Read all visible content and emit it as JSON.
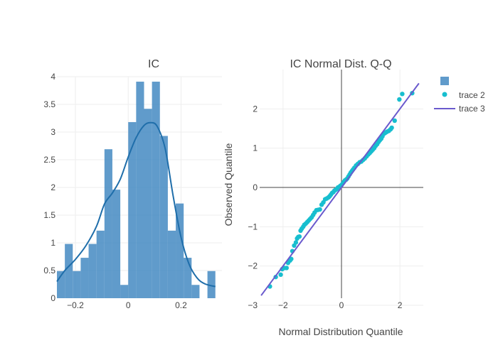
{
  "chart_data": [
    {
      "type": "bar",
      "subtype": "histogram-with-kde",
      "title": "IC",
      "xlabel": "",
      "ylabel": "",
      "xlim": [
        -0.27,
        0.355
      ],
      "ylim": [
        0,
        4
      ],
      "x_ticks": [
        -0.2,
        0,
        0.2
      ],
      "x_tick_labels": [
        "−0.2",
        "0",
        "0.2"
      ],
      "y_ticks": [
        0,
        0.5,
        1,
        1.5,
        2,
        2.5,
        3,
        3.5,
        4
      ],
      "y_tick_labels": [
        "0",
        "0.5",
        "1",
        "1.5",
        "2",
        "2.5",
        "3",
        "3.5",
        "4"
      ],
      "bar_color": "#3d85c0",
      "kde_color": "#1f6eaa",
      "bins": [
        {
          "x0": -0.27,
          "x1": -0.24,
          "value": 0.49
        },
        {
          "x0": -0.24,
          "x1": -0.21,
          "value": 0.98
        },
        {
          "x0": -0.21,
          "x1": -0.18,
          "value": 0.49
        },
        {
          "x0": -0.18,
          "x1": -0.15,
          "value": 0.73
        },
        {
          "x0": -0.15,
          "x1": -0.12,
          "value": 0.98
        },
        {
          "x0": -0.12,
          "x1": -0.09,
          "value": 1.22
        },
        {
          "x0": -0.09,
          "x1": -0.06,
          "value": 2.69
        },
        {
          "x0": -0.06,
          "x1": -0.03,
          "value": 1.96
        },
        {
          "x0": -0.03,
          "x1": 0.0,
          "value": 0.24
        },
        {
          "x0": 0.0,
          "x1": 0.03,
          "value": 3.18
        },
        {
          "x0": 0.03,
          "x1": 0.06,
          "value": 3.91
        },
        {
          "x0": 0.06,
          "x1": 0.09,
          "value": 3.42
        },
        {
          "x0": 0.09,
          "x1": 0.12,
          "value": 3.91
        },
        {
          "x0": 0.12,
          "x1": 0.15,
          "value": 2.93
        },
        {
          "x0": 0.15,
          "x1": 0.18,
          "value": 1.22
        },
        {
          "x0": 0.18,
          "x1": 0.21,
          "value": 1.71
        },
        {
          "x0": 0.21,
          "x1": 0.24,
          "value": 0.73
        },
        {
          "x0": 0.24,
          "x1": 0.27,
          "value": 0.24
        },
        {
          "x0": 0.27,
          "x1": 0.3,
          "value": 0
        },
        {
          "x0": 0.3,
          "x1": 0.33,
          "value": 0.49
        }
      ],
      "kde": {
        "x": [
          -0.27,
          -0.24,
          -0.2,
          -0.16,
          -0.12,
          -0.09,
          -0.06,
          -0.03,
          0.0,
          0.03,
          0.06,
          0.085,
          0.11,
          0.14,
          0.17,
          0.2,
          0.23,
          0.26,
          0.29,
          0.33
        ],
        "y": [
          0.3,
          0.5,
          0.7,
          0.95,
          1.3,
          1.7,
          1.9,
          2.15,
          2.55,
          2.9,
          3.12,
          3.17,
          3.1,
          2.7,
          1.85,
          1.1,
          0.62,
          0.37,
          0.26,
          0.21
        ]
      }
    },
    {
      "type": "scatter",
      "title": "IC Normal Dist. Q-Q",
      "xlabel": "Normal Distribution Quantile",
      "ylabel": "Observed Quantile",
      "xlim": [
        -2.8,
        2.8
      ],
      "ylim": [
        -3,
        3
      ],
      "x_ticks": [
        -2,
        0,
        2
      ],
      "x_tick_labels": [
        "−2",
        "0",
        "2"
      ],
      "y_ticks": [
        -3,
        -2,
        -1,
        0,
        1,
        2
      ],
      "y_tick_labels": [
        "−3",
        "−2",
        "−1",
        "0",
        "1",
        "2"
      ],
      "legend_position": "top-right",
      "legend": [
        {
          "name": "",
          "kind": "bar",
          "color": "#3d85c0"
        },
        {
          "name": "trace 2",
          "kind": "marker",
          "color": "#17becf"
        },
        {
          "name": "trace 3",
          "kind": "line",
          "color": "#6a5acd"
        }
      ],
      "series": [
        {
          "name": "trace 2",
          "kind": "scatter",
          "color": "#17becf",
          "x": [
            -2.45,
            -2.25,
            -2.08,
            -2.03,
            -1.96,
            -1.88,
            -1.83,
            -1.76,
            -1.72,
            -1.68,
            -1.62,
            -1.56,
            -1.52,
            -1.48,
            -1.44,
            -1.4,
            -1.36,
            -1.31,
            -1.27,
            -1.22,
            -1.17,
            -1.12,
            -1.07,
            -1.02,
            -0.97,
            -0.92,
            -0.86,
            -0.8,
            -0.74,
            -0.68,
            -0.62,
            -0.56,
            -0.5,
            -0.44,
            -0.4,
            -0.36,
            -0.32,
            -0.28,
            -0.24,
            -0.2,
            -0.16,
            -0.12,
            -0.08,
            -0.04,
            0.0,
            0.04,
            0.08,
            0.12,
            0.16,
            0.2,
            0.24,
            0.28,
            0.32,
            0.36,
            0.4,
            0.44,
            0.5,
            0.56,
            0.62,
            0.68,
            0.74,
            0.8,
            0.86,
            0.92,
            0.97,
            1.02,
            1.07,
            1.12,
            1.17,
            1.22,
            1.27,
            1.31,
            1.36,
            1.4,
            1.44,
            1.48,
            1.52,
            1.56,
            1.62,
            1.68,
            1.72,
            1.82,
            1.98,
            2.08,
            2.42
          ],
          "y": [
            -2.52,
            -2.28,
            -2.22,
            -2.08,
            -2.05,
            -2.05,
            -1.92,
            -1.86,
            -1.82,
            -1.62,
            -1.48,
            -1.4,
            -1.3,
            -1.26,
            -1.25,
            -1.1,
            -1.05,
            -1.0,
            -0.95,
            -0.92,
            -0.88,
            -0.84,
            -0.8,
            -0.76,
            -0.7,
            -0.64,
            -0.58,
            -0.57,
            -0.56,
            -0.44,
            -0.38,
            -0.3,
            -0.28,
            -0.25,
            -0.22,
            -0.18,
            -0.14,
            -0.12,
            -0.08,
            -0.06,
            -0.04,
            0.0,
            0.01,
            0.04,
            0.06,
            0.1,
            0.14,
            0.18,
            0.2,
            0.23,
            0.28,
            0.33,
            0.38,
            0.42,
            0.46,
            0.5,
            0.56,
            0.6,
            0.64,
            0.66,
            0.7,
            0.74,
            0.79,
            0.84,
            0.88,
            0.92,
            0.96,
            1.0,
            1.06,
            1.1,
            1.16,
            1.2,
            1.24,
            1.3,
            1.36,
            1.38,
            1.4,
            1.42,
            1.44,
            1.48,
            1.52,
            1.7,
            2.24,
            2.38,
            2.4
          ]
        },
        {
          "name": "trace 3",
          "kind": "line",
          "color": "#6a5acd",
          "x": [
            -2.75,
            2.65
          ],
          "y": [
            -2.75,
            2.65
          ]
        }
      ]
    }
  ]
}
